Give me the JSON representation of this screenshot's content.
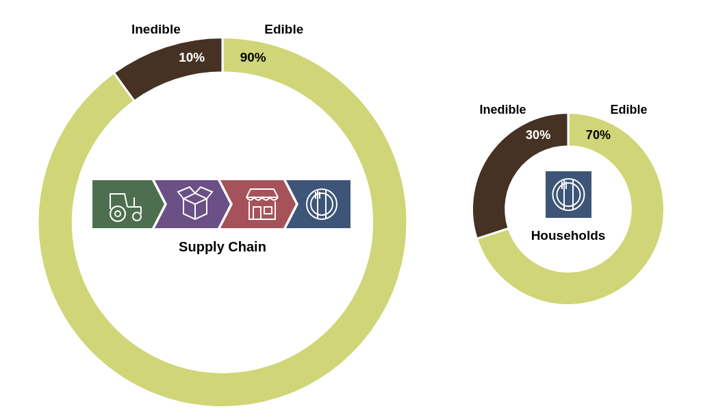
{
  "chart_data": [
    {
      "type": "doughnut",
      "title": "Supply Chain",
      "categories": [
        "Edible",
        "Inedible"
      ],
      "values": [
        90,
        10
      ],
      "value_labels": [
        "90%",
        "10%"
      ],
      "colors": [
        "#d0d577",
        "#463224"
      ],
      "data_labels": true
    },
    {
      "type": "doughnut",
      "title": "Households",
      "categories": [
        "Edible",
        "Inedible"
      ],
      "values": [
        70,
        30
      ],
      "value_labels": [
        "70%",
        "30%"
      ],
      "colors": [
        "#d0d577",
        "#463224"
      ],
      "data_labels": true
    }
  ]
}
